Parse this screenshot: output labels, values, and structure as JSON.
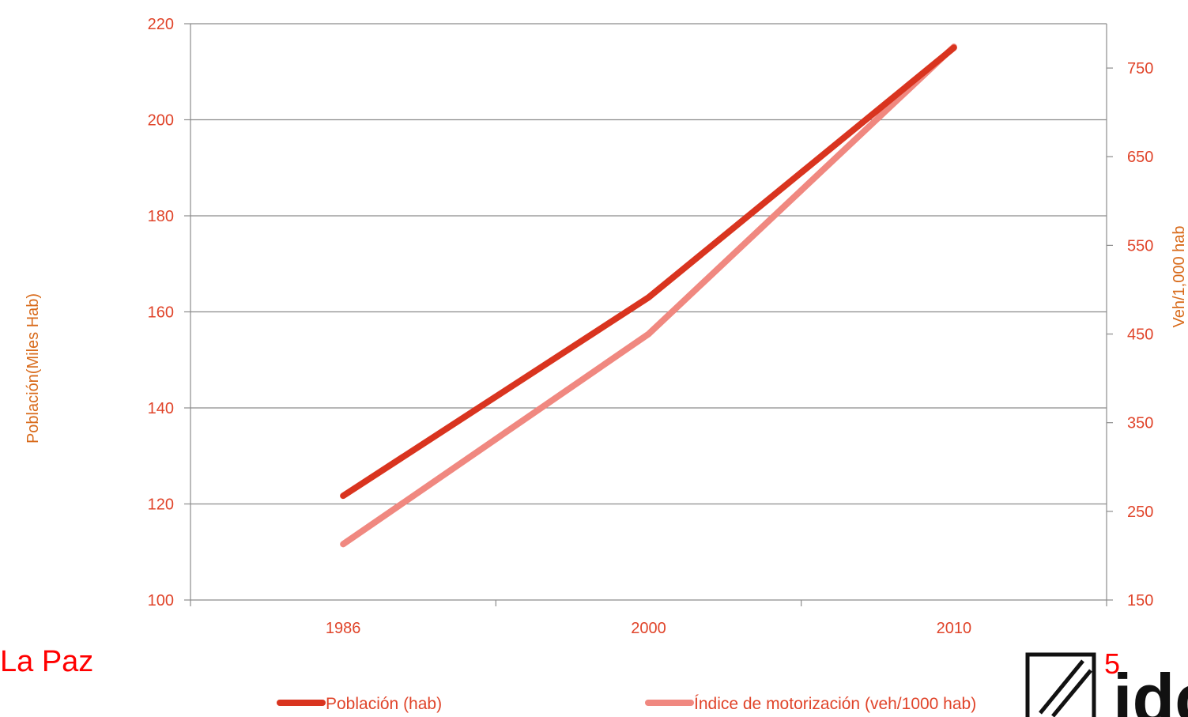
{
  "chart_data": {
    "type": "line",
    "categories": [
      "1986",
      "2000",
      "2010"
    ],
    "series": [
      {
        "name": "Población (hab)",
        "axis": "left",
        "color": "#d9341f",
        "values": [
          121.7,
          163.0,
          215.0
        ]
      },
      {
        "name": "Índice de motorización (veh/1000 hab)",
        "axis": "right",
        "color": "#f08880",
        "values": [
          213,
          450,
          774
        ]
      }
    ],
    "y_left": {
      "label": "Población(Miles Hab)",
      "ticks": [
        100,
        120,
        140,
        160,
        180,
        200,
        220
      ],
      "lim": [
        100,
        220
      ]
    },
    "y_right": {
      "label": "Veh/1,000 hab",
      "ticks": [
        150,
        250,
        350,
        450,
        550,
        650,
        750
      ],
      "lim": [
        150,
        800
      ]
    },
    "grid": true,
    "legend_position": "bottom",
    "colors": {
      "tick_text": "#e0442a",
      "axis_title": "#d86a1a",
      "grid": "#8c8c8c"
    }
  },
  "footer": {
    "place": "La Paz",
    "page": "5"
  },
  "logo": {
    "text": "idc",
    "icon": "slash-box-logo-icon"
  }
}
